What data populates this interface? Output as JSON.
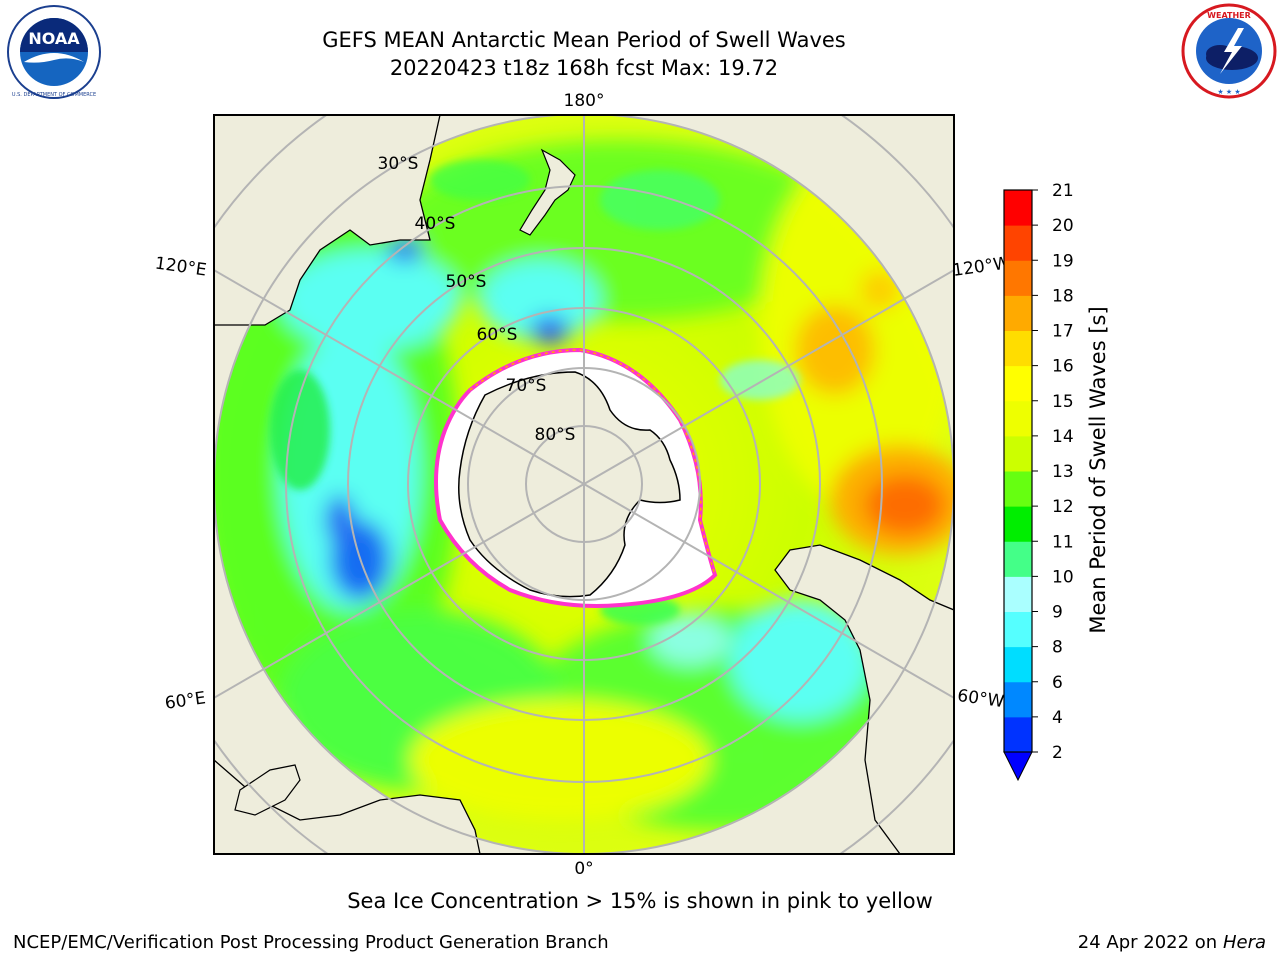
{
  "header": {
    "title_line1": "GEFS MEAN Antarctic Mean Period of Swell Waves",
    "title_line2": "20220423 t18z 168h fcst   Max: 19.72"
  },
  "logos": {
    "left": "NOAA",
    "left_ring_text": "NATIONAL OCEANIC AND ATMOSPHERIC ADMINISTRATION",
    "left_bottom_text": "U.S. DEPARTMENT OF COMMERCE",
    "right_ring_text": "NATIONAL WEATHER SERVICE"
  },
  "map": {
    "projection": "south-polar-stereographic",
    "longitude_labels": {
      "top": "180°",
      "bottom": "0°",
      "upper_left": "120°E",
      "lower_left": "60°E",
      "upper_right": "120°W",
      "lower_right": "60°W"
    },
    "latitude_labels": [
      "30°S",
      "40°S",
      "50°S",
      "60°S",
      "70°S",
      "80°S"
    ],
    "colors": {
      "land": "#eeeddc",
      "ice": "#ffffff",
      "ice_edge": "#ff33cc",
      "grid": "#b4b4b4",
      "coast": "#000000"
    }
  },
  "colorbar": {
    "label": "Mean Period of Swell Waves [s]",
    "ticks": [
      "2",
      "4",
      "6",
      "8",
      "9",
      "10",
      "11",
      "12",
      "13",
      "14",
      "15",
      "16",
      "17",
      "18",
      "19",
      "20",
      "21"
    ],
    "colors": [
      "#0033ff",
      "#0088ff",
      "#00ddff",
      "#55ffff",
      "#aaffff",
      "#44ff88",
      "#00ee00",
      "#66ff11",
      "#ccff00",
      "#eeff00",
      "#ffff00",
      "#ffdd00",
      "#ffaa00",
      "#ff7700",
      "#ff4400",
      "#ff0000"
    ],
    "extend_color": "#0000ff"
  },
  "footer": {
    "note": "Sea Ice Concentration > 15% is shown in pink to yellow",
    "credit": "NCEP/EMC/Verification Post Processing Product Generation Branch",
    "date": "24 Apr 2022 on ",
    "machine": "Hera"
  }
}
